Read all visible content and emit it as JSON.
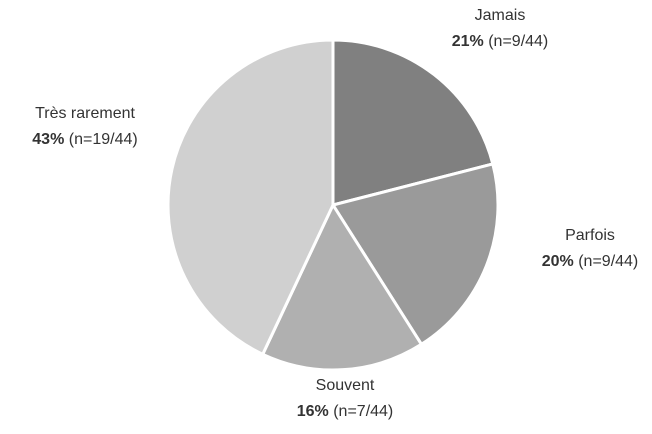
{
  "chart_data": {
    "type": "pie",
    "categories": [
      "Jamais",
      "Parfois",
      "Souvent",
      "Très rarement"
    ],
    "values": [
      21,
      20,
      16,
      43
    ],
    "value_labels": [
      "21%",
      "20%",
      "16%",
      "43%"
    ],
    "count_labels": [
      "(n=9/44)",
      "(n=9/44)",
      "(n=7/44)",
      "(n=19/44)"
    ],
    "colors": [
      "#808080",
      "#9a9a9a",
      "#b0b0b0",
      "#d0d0d0"
    ]
  }
}
